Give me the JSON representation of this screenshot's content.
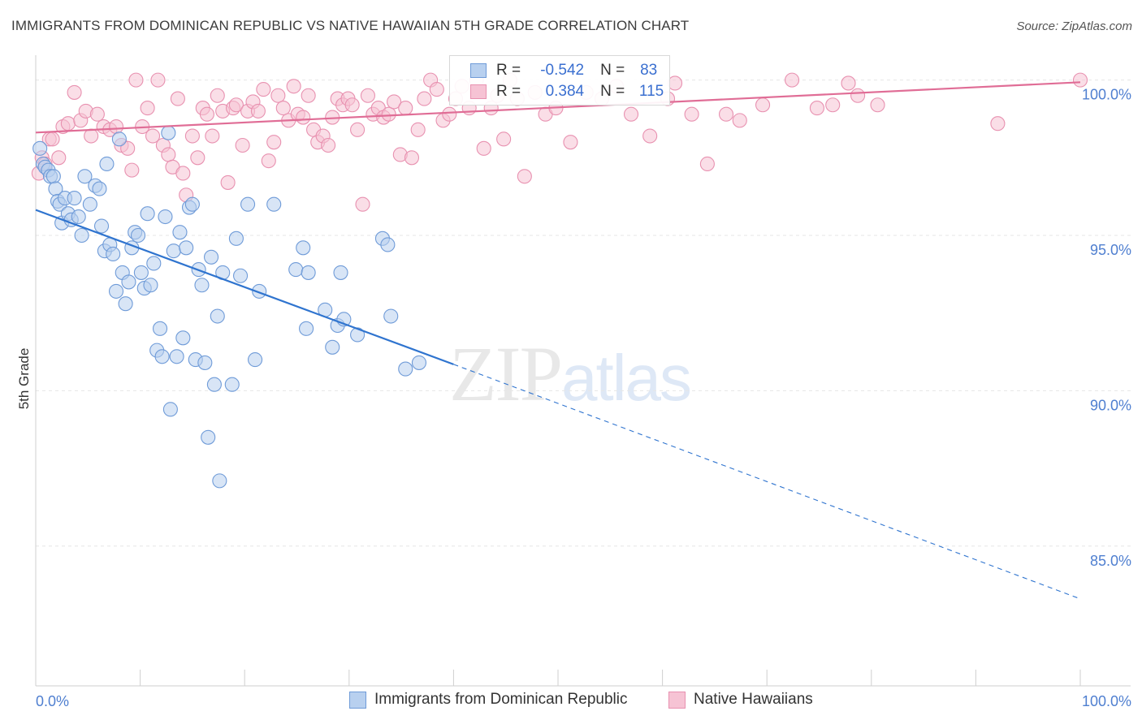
{
  "title": "IMMIGRANTS FROM DOMINICAN REPUBLIC VS NATIVE HAWAIIAN 5TH GRADE CORRELATION CHART",
  "source": "Source: ZipAtlas.com",
  "watermark": {
    "zip": "ZIP",
    "atlas": "atlas"
  },
  "colors": {
    "blue_fill": "#b8d0ef",
    "blue_stroke": "#6f9bd8",
    "blue_line": "#2f74cf",
    "pink_fill": "#f6c3d4",
    "pink_stroke": "#e891b0",
    "pink_line": "#e06d96",
    "tick_label": "#4f7fd0",
    "grid": "#e6e6e6"
  },
  "legend": {
    "rows": [
      {
        "r_label": "R =",
        "r_value": "-0.542",
        "n_label": "N =",
        "n_value": "83"
      },
      {
        "r_label": "R =",
        "r_value": "0.384",
        "n_label": "N =",
        "n_value": "115"
      }
    ]
  },
  "chart_data": {
    "type": "scatter",
    "title": "IMMIGRANTS FROM DOMINICAN REPUBLIC VS NATIVE HAWAIIAN 5TH GRADE CORRELATION CHART",
    "xlabel": "",
    "ylabel": "5th Grade",
    "xlim": [
      0,
      100
    ],
    "ylim": [
      80.5,
      100.8
    ],
    "x_tick_labels": [
      "0.0%",
      "100.0%"
    ],
    "y_ticks": [
      85,
      90,
      95,
      100
    ],
    "y_tick_labels": [
      "85.0%",
      "90.0%",
      "95.0%",
      "100.0%"
    ],
    "grid": true,
    "legend_position": "bottom",
    "series": [
      {
        "name": "Immigrants from Dominican Republic",
        "r": -0.542,
        "n": 83,
        "trend": {
          "x0": 0,
          "y0": 95.82,
          "x1": 40,
          "y1": 90.85,
          "dashed_to_x": 100,
          "dashed_to_y": 83.3
        },
        "points": [
          [
            0.4,
            97.8
          ],
          [
            0.7,
            97.3
          ],
          [
            0.9,
            97.2
          ],
          [
            1.2,
            97.1
          ],
          [
            1.4,
            96.9
          ],
          [
            1.7,
            96.9
          ],
          [
            1.9,
            96.5
          ],
          [
            2.1,
            96.1
          ],
          [
            2.3,
            96.0
          ],
          [
            2.5,
            95.4
          ],
          [
            2.8,
            96.2
          ],
          [
            3.1,
            95.7
          ],
          [
            3.4,
            95.5
          ],
          [
            3.7,
            96.2
          ],
          [
            4.1,
            95.6
          ],
          [
            4.4,
            95.0
          ],
          [
            4.7,
            96.9
          ],
          [
            5.2,
            96.0
          ],
          [
            5.7,
            96.6
          ],
          [
            6.1,
            96.5
          ],
          [
            6.3,
            95.3
          ],
          [
            6.6,
            94.5
          ],
          [
            6.8,
            97.3
          ],
          [
            7.1,
            94.7
          ],
          [
            7.4,
            94.4
          ],
          [
            7.7,
            93.2
          ],
          [
            8.0,
            98.1
          ],
          [
            8.3,
            93.8
          ],
          [
            8.6,
            92.8
          ],
          [
            8.9,
            93.5
          ],
          [
            9.2,
            94.6
          ],
          [
            9.5,
            95.1
          ],
          [
            9.8,
            95.0
          ],
          [
            10.1,
            93.8
          ],
          [
            10.4,
            93.3
          ],
          [
            10.7,
            95.7
          ],
          [
            11.0,
            93.4
          ],
          [
            11.3,
            94.1
          ],
          [
            11.6,
            91.3
          ],
          [
            11.9,
            92.0
          ],
          [
            12.1,
            91.1
          ],
          [
            12.4,
            95.6
          ],
          [
            12.7,
            98.3
          ],
          [
            12.9,
            89.4
          ],
          [
            13.2,
            94.5
          ],
          [
            13.5,
            91.1
          ],
          [
            13.8,
            95.1
          ],
          [
            14.1,
            91.7
          ],
          [
            14.4,
            94.6
          ],
          [
            14.7,
            95.9
          ],
          [
            15.0,
            96.0
          ],
          [
            15.3,
            91.0
          ],
          [
            15.6,
            93.9
          ],
          [
            15.9,
            93.4
          ],
          [
            16.2,
            90.9
          ],
          [
            16.5,
            88.5
          ],
          [
            16.8,
            94.3
          ],
          [
            17.1,
            90.2
          ],
          [
            17.4,
            92.4
          ],
          [
            17.6,
            87.1
          ],
          [
            17.9,
            93.8
          ],
          [
            18.8,
            90.2
          ],
          [
            19.2,
            94.9
          ],
          [
            19.6,
            93.7
          ],
          [
            20.3,
            96.0
          ],
          [
            21.0,
            91.0
          ],
          [
            21.4,
            93.2
          ],
          [
            22.8,
            96.0
          ],
          [
            24.9,
            93.9
          ],
          [
            25.6,
            94.6
          ],
          [
            25.9,
            92.0
          ],
          [
            26.1,
            93.8
          ],
          [
            27.7,
            92.6
          ],
          [
            28.4,
            91.4
          ],
          [
            28.9,
            92.1
          ],
          [
            29.2,
            93.8
          ],
          [
            29.5,
            92.3
          ],
          [
            30.8,
            91.8
          ],
          [
            33.2,
            94.9
          ],
          [
            33.7,
            94.7
          ],
          [
            34.0,
            92.4
          ],
          [
            35.4,
            90.7
          ],
          [
            36.7,
            90.9
          ]
        ]
      },
      {
        "name": "Native Hawaiians",
        "r": 0.384,
        "n": 115,
        "trend": {
          "x0": 0,
          "y0": 98.31,
          "x1": 100,
          "y1": 99.93
        },
        "points": [
          [
            0.3,
            97.0
          ],
          [
            0.6,
            97.5
          ],
          [
            0.9,
            97.3
          ],
          [
            1.3,
            98.1
          ],
          [
            1.6,
            98.1
          ],
          [
            2.2,
            97.5
          ],
          [
            2.6,
            98.5
          ],
          [
            3.1,
            98.6
          ],
          [
            3.7,
            99.6
          ],
          [
            4.3,
            98.7
          ],
          [
            4.8,
            99.0
          ],
          [
            5.3,
            98.2
          ],
          [
            5.9,
            98.9
          ],
          [
            6.5,
            98.5
          ],
          [
            7.1,
            98.4
          ],
          [
            7.7,
            98.5
          ],
          [
            8.2,
            97.9
          ],
          [
            8.8,
            97.8
          ],
          [
            9.2,
            97.1
          ],
          [
            9.6,
            100.0
          ],
          [
            10.2,
            98.5
          ],
          [
            10.7,
            99.1
          ],
          [
            11.2,
            98.2
          ],
          [
            11.7,
            100.0
          ],
          [
            12.2,
            97.9
          ],
          [
            12.7,
            97.6
          ],
          [
            13.1,
            97.2
          ],
          [
            13.6,
            99.4
          ],
          [
            14.1,
            97.0
          ],
          [
            14.4,
            96.3
          ],
          [
            15.0,
            98.2
          ],
          [
            15.5,
            97.5
          ],
          [
            16.0,
            99.1
          ],
          [
            16.4,
            98.9
          ],
          [
            16.9,
            98.2
          ],
          [
            17.4,
            99.5
          ],
          [
            17.9,
            99.0
          ],
          [
            18.4,
            96.7
          ],
          [
            18.9,
            99.1
          ],
          [
            19.2,
            99.2
          ],
          [
            19.8,
            97.9
          ],
          [
            20.3,
            99.0
          ],
          [
            20.8,
            99.3
          ],
          [
            21.3,
            99.0
          ],
          [
            21.8,
            99.7
          ],
          [
            22.3,
            97.4
          ],
          [
            22.8,
            98.0
          ],
          [
            23.2,
            99.5
          ],
          [
            23.7,
            99.1
          ],
          [
            24.2,
            98.7
          ],
          [
            24.7,
            99.8
          ],
          [
            25.1,
            98.9
          ],
          [
            25.6,
            98.8
          ],
          [
            26.1,
            99.5
          ],
          [
            26.6,
            98.4
          ],
          [
            27.0,
            98.0
          ],
          [
            27.5,
            98.2
          ],
          [
            28.0,
            97.9
          ],
          [
            28.4,
            98.8
          ],
          [
            28.9,
            99.4
          ],
          [
            29.4,
            99.2
          ],
          [
            29.9,
            99.4
          ],
          [
            30.3,
            99.2
          ],
          [
            30.8,
            98.4
          ],
          [
            31.3,
            96.0
          ],
          [
            31.8,
            99.5
          ],
          [
            32.3,
            98.9
          ],
          [
            32.8,
            99.1
          ],
          [
            33.3,
            98.8
          ],
          [
            33.8,
            98.9
          ],
          [
            34.3,
            99.3
          ],
          [
            34.9,
            97.6
          ],
          [
            35.4,
            99.1
          ],
          [
            36.0,
            97.5
          ],
          [
            36.6,
            98.4
          ],
          [
            37.2,
            99.4
          ],
          [
            37.8,
            100.0
          ],
          [
            38.4,
            99.7
          ],
          [
            39.0,
            98.7
          ],
          [
            39.6,
            98.9
          ],
          [
            40.2,
            99.4
          ],
          [
            40.8,
            99.8
          ],
          [
            41.5,
            99.1
          ],
          [
            42.2,
            100.0
          ],
          [
            42.9,
            97.8
          ],
          [
            43.6,
            99.1
          ],
          [
            44.2,
            99.5
          ],
          [
            44.8,
            98.1
          ],
          [
            45.4,
            100.0
          ],
          [
            46.1,
            99.4
          ],
          [
            46.8,
            96.9
          ],
          [
            47.8,
            99.6
          ],
          [
            48.8,
            98.9
          ],
          [
            49.8,
            99.1
          ],
          [
            51.2,
            98.0
          ],
          [
            52.7,
            99.6
          ],
          [
            54.2,
            99.4
          ],
          [
            55.6,
            99.8
          ],
          [
            57.0,
            98.9
          ],
          [
            58.8,
            98.2
          ],
          [
            60.5,
            99.4
          ],
          [
            61.2,
            99.9
          ],
          [
            62.8,
            98.9
          ],
          [
            64.3,
            97.3
          ],
          [
            66.1,
            98.9
          ],
          [
            67.4,
            98.7
          ],
          [
            69.6,
            99.2
          ],
          [
            72.4,
            100.0
          ],
          [
            74.8,
            99.1
          ],
          [
            76.3,
            99.2
          ],
          [
            77.8,
            99.9
          ],
          [
            78.7,
            99.5
          ],
          [
            80.6,
            99.2
          ],
          [
            92.1,
            98.6
          ],
          [
            100.0,
            100.0
          ]
        ]
      }
    ]
  }
}
